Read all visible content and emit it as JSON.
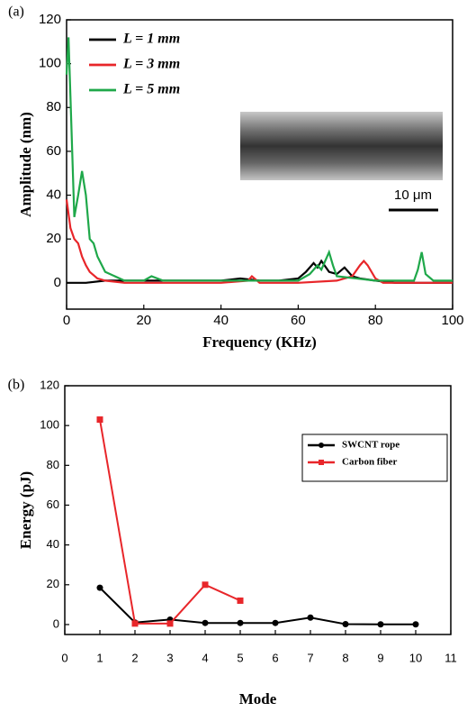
{
  "chart_data": [
    {
      "type": "line",
      "panel_label": "(a)",
      "x_label": "Frequency (KHz)",
      "y_label": "Amplitude (nm)",
      "xlim": [
        0,
        100
      ],
      "xticks": [
        0,
        20,
        40,
        60,
        80,
        100
      ],
      "ylim": [
        -12,
        120
      ],
      "yticks": [
        0,
        20,
        40,
        60,
        80,
        100,
        120
      ],
      "legend": "upper left",
      "inset_label": "10 μm",
      "series": [
        {
          "name": "L = 1 mm",
          "color": "#000000",
          "x": [
            0,
            5,
            10,
            20,
            30,
            40,
            45,
            50,
            55,
            60,
            62,
            64,
            65,
            66,
            68,
            70,
            72,
            74,
            76,
            80,
            85,
            90,
            95,
            100
          ],
          "values": [
            0,
            0,
            1,
            1,
            1,
            1,
            2,
            1,
            1,
            2,
            5,
            9,
            7,
            10,
            5,
            4,
            7,
            3,
            2,
            1,
            0,
            0,
            0,
            0
          ]
        },
        {
          "name": "L = 3 mm",
          "color": "#e8262a",
          "x": [
            0,
            1,
            2,
            3,
            4,
            5,
            6,
            8,
            10,
            15,
            20,
            30,
            40,
            47,
            48,
            50,
            60,
            70,
            74,
            76,
            77,
            78,
            80,
            82,
            90,
            100
          ],
          "values": [
            38,
            25,
            20,
            18,
            12,
            8,
            5,
            2,
            1,
            0,
            0,
            0,
            0,
            1,
            3,
            0,
            0,
            1,
            3,
            8,
            10,
            8,
            2,
            0,
            0,
            0
          ]
        },
        {
          "name": "L = 5 mm",
          "color": "#1fa84a",
          "x": [
            0,
            0.5,
            1,
            2,
            3,
            4,
            5,
            6,
            7,
            8,
            10,
            15,
            20,
            22,
            25,
            30,
            40,
            50,
            60,
            63,
            65,
            66,
            67,
            68,
            69,
            70,
            75,
            80,
            85,
            90,
            91,
            92,
            93,
            95,
            100
          ],
          "values": [
            95,
            112,
            85,
            30,
            40,
            51,
            40,
            20,
            18,
            12,
            5,
            1,
            1,
            3,
            1,
            1,
            1,
            1,
            1,
            4,
            8,
            6,
            10,
            14,
            8,
            3,
            2,
            1,
            1,
            1,
            6,
            14,
            4,
            1,
            1
          ]
        }
      ]
    },
    {
      "type": "line",
      "panel_label": "(b)",
      "x_label": "Mode",
      "y_label": "Energy (pJ)",
      "xlim": [
        0,
        11
      ],
      "xticks": [
        0,
        1,
        2,
        3,
        4,
        5,
        6,
        7,
        8,
        9,
        10,
        11
      ],
      "ylim": [
        -5,
        120
      ],
      "yticks": [
        0,
        20,
        40,
        60,
        80,
        100,
        120
      ],
      "legend": "upper right",
      "series": [
        {
          "name": "SWCNT rope",
          "color": "#000000",
          "marker": "circle",
          "x": [
            1,
            2,
            3,
            4,
            5,
            6,
            7,
            8,
            9,
            10
          ],
          "values": [
            18.5,
            1,
            2.5,
            0.8,
            0.8,
            0.8,
            3.5,
            0.2,
            0.1,
            0.1
          ]
        },
        {
          "name": "Carbon fiber",
          "color": "#e8262a",
          "marker": "square",
          "x": [
            1,
            2,
            3,
            4,
            5
          ],
          "values": [
            103,
            0.5,
            0.5,
            20,
            12
          ]
        }
      ]
    }
  ]
}
